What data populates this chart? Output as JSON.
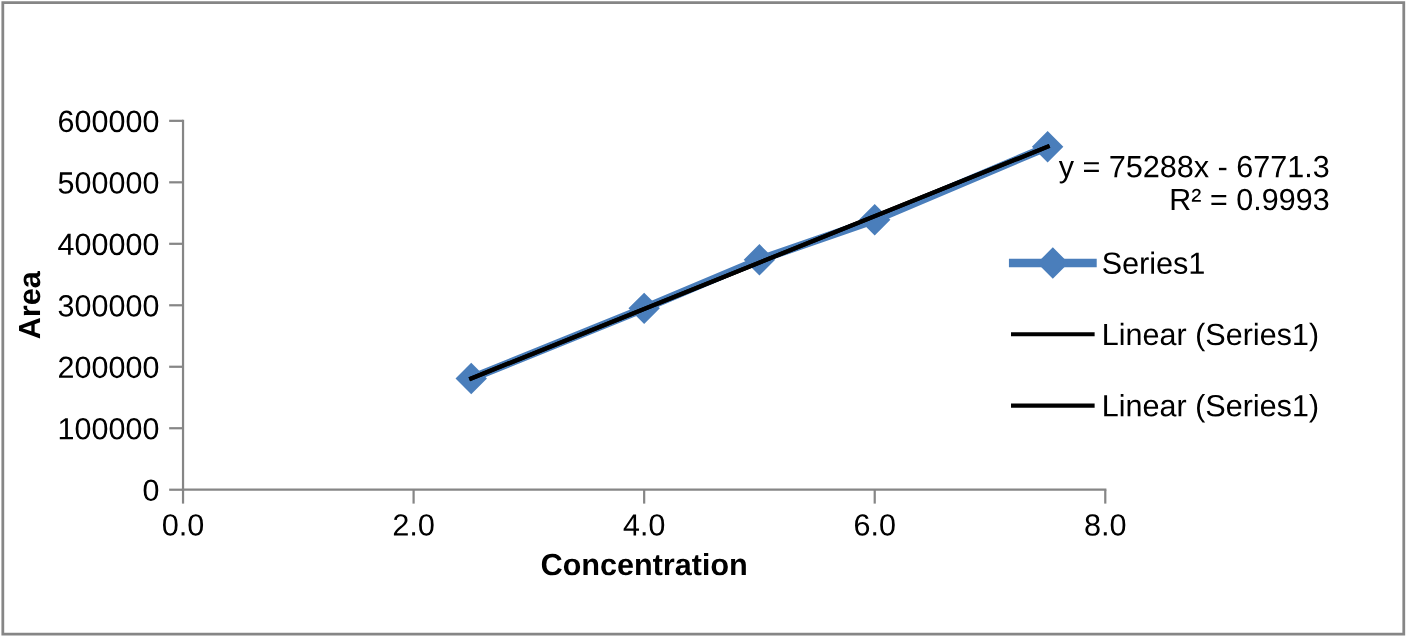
{
  "chart_data": {
    "type": "line",
    "xlabel": "Concentration",
    "ylabel": "Area",
    "xlim": [
      0,
      8
    ],
    "xticks": [
      {
        "value": 0,
        "label": "0.0"
      },
      {
        "value": 2,
        "label": "2.0"
      },
      {
        "value": 4,
        "label": "4.0"
      },
      {
        "value": 6,
        "label": "6.0"
      },
      {
        "value": 8,
        "label": "8.0"
      }
    ],
    "ylim": [
      0,
      600000
    ],
    "yticks": [
      0,
      100000,
      200000,
      300000,
      400000,
      500000,
      600000
    ],
    "grid": false,
    "legend": "right",
    "series": [
      {
        "name": "Series1",
        "color": "#4a7ebb",
        "marker": "diamond",
        "x": [
          2.5,
          4,
          5,
          6,
          7.5
        ],
        "values": [
          181000,
          295000,
          374000,
          439000,
          558000
        ]
      },
      {
        "name": "Linear (Series1)",
        "color": "#000000",
        "marker": "none",
        "x": [
          2.5,
          7.5
        ],
        "values": [
          181000,
          558000
        ]
      },
      {
        "name": "Linear (Series1)",
        "color": "#000000",
        "marker": "none",
        "x": [
          2.5,
          7.5
        ],
        "values": [
          181000,
          558000
        ]
      }
    ],
    "annotations": [
      {
        "text": "y = 75288x - 6771.3\nR² = 0.9993",
        "x": 7.5,
        "y": 558000
      }
    ]
  }
}
